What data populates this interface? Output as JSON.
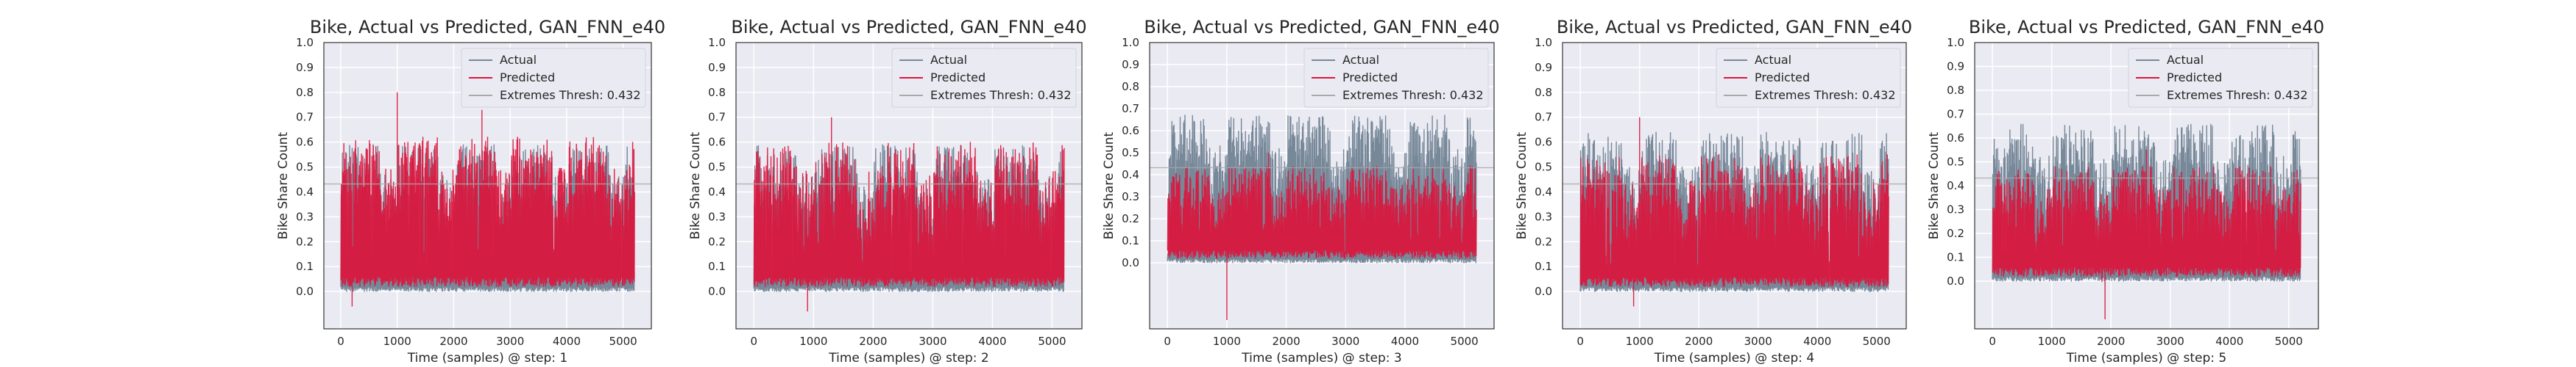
{
  "chart_data": [
    {
      "type": "line",
      "title": "Bike, Actual vs Predicted, GAN_FNN_e40",
      "xlabel": "Time (samples) @ step: 1",
      "ylabel": "Bike Share Count",
      "xlim": [
        -300,
        5500
      ],
      "ylim": [
        -0.15,
        1.0
      ],
      "xticks": [
        0,
        1000,
        2000,
        3000,
        4000,
        5000
      ],
      "yticks": [
        0.0,
        0.1,
        0.2,
        0.3,
        0.4,
        0.5,
        0.6,
        0.7,
        0.8,
        0.9,
        1.0
      ],
      "grid": true,
      "legend": "top-right",
      "threshold": 0.432,
      "series": [
        {
          "name": "Actual",
          "color": "#778899",
          "lowMin": 0.0,
          "lowMax": 0.02,
          "peakBase": 0.47,
          "peakVar": 0.12
        },
        {
          "name": "Predicted",
          "color": "#dc143c",
          "lowMin": 0.02,
          "lowMax": 0.06,
          "peakBase": 0.5,
          "peakVar": 0.12,
          "spikes": [
            [
              200,
              -0.06
            ],
            [
              1000,
              0.8
            ],
            [
              2500,
              0.73
            ]
          ]
        },
        {
          "name": "Extremes Thresh: 0.432",
          "color": "#a9a9a9"
        }
      ]
    },
    {
      "type": "line",
      "title": "Bike, Actual vs Predicted, GAN_FNN_e40",
      "xlabel": "Time (samples) @ step: 2",
      "ylabel": "Bike Share Count",
      "xlim": [
        -300,
        5500
      ],
      "ylim": [
        -0.15,
        1.0
      ],
      "xticks": [
        0,
        1000,
        2000,
        3000,
        4000,
        5000
      ],
      "yticks": [
        0.0,
        0.1,
        0.2,
        0.3,
        0.4,
        0.5,
        0.6,
        0.7,
        0.8,
        0.9,
        1.0
      ],
      "grid": true,
      "legend": "top-right",
      "threshold": 0.432,
      "series": [
        {
          "name": "Actual",
          "color": "#778899",
          "lowMin": 0.0,
          "lowMax": 0.02,
          "peakBase": 0.47,
          "peakVar": 0.12
        },
        {
          "name": "Predicted",
          "color": "#dc143c",
          "lowMin": 0.02,
          "lowMax": 0.06,
          "peakBase": 0.46,
          "peakVar": 0.14,
          "spikes": [
            [
              900,
              -0.08
            ],
            [
              1300,
              0.7
            ]
          ]
        },
        {
          "name": "Extremes Thresh: 0.432",
          "color": "#a9a9a9"
        }
      ]
    },
    {
      "type": "line",
      "title": "Bike, Actual vs Predicted, GAN_FNN_e40",
      "xlabel": "Time (samples) @ step: 3",
      "ylabel": "Bike Share Count",
      "xlim": [
        -300,
        5500
      ],
      "ylim": [
        -0.3,
        1.0
      ],
      "xticks": [
        0,
        1000,
        2000,
        3000,
        4000,
        5000
      ],
      "yticks": [
        0.0,
        0.1,
        0.2,
        0.3,
        0.4,
        0.5,
        0.6,
        0.7,
        0.8,
        0.9,
        1.0
      ],
      "grid": true,
      "legend": "top-right",
      "threshold": 0.432,
      "series": [
        {
          "name": "Actual",
          "color": "#778899",
          "lowMin": 0.0,
          "lowMax": 0.02,
          "peakBase": 0.55,
          "peakVar": 0.12
        },
        {
          "name": "Predicted",
          "color": "#dc143c",
          "lowMin": 0.02,
          "lowMax": 0.06,
          "peakBase": 0.34,
          "peakVar": 0.1,
          "spikes": [
            [
              1000,
              -0.26
            ],
            [
              1700,
              0.5
            ]
          ]
        },
        {
          "name": "Extremes Thresh: 0.432",
          "color": "#a9a9a9"
        }
      ]
    },
    {
      "type": "line",
      "title": "Bike, Actual vs Predicted, GAN_FNN_e40",
      "xlabel": "Time (samples) @ step: 4",
      "ylabel": "Bike Share Count",
      "xlim": [
        -300,
        5500
      ],
      "ylim": [
        -0.15,
        1.0
      ],
      "xticks": [
        0,
        1000,
        2000,
        3000,
        4000,
        5000
      ],
      "yticks": [
        0.0,
        0.1,
        0.2,
        0.3,
        0.4,
        0.5,
        0.6,
        0.7,
        0.8,
        0.9,
        1.0
      ],
      "grid": true,
      "legend": "top-right",
      "threshold": 0.432,
      "series": [
        {
          "name": "Actual",
          "color": "#778899",
          "lowMin": 0.0,
          "lowMax": 0.02,
          "peakBase": 0.52,
          "peakVar": 0.12
        },
        {
          "name": "Predicted",
          "color": "#dc143c",
          "lowMin": 0.02,
          "lowMax": 0.06,
          "peakBase": 0.43,
          "peakVar": 0.12,
          "spikes": [
            [
              900,
              -0.06
            ],
            [
              1000,
              0.7
            ]
          ]
        },
        {
          "name": "Extremes Thresh: 0.432",
          "color": "#a9a9a9"
        }
      ]
    },
    {
      "type": "line",
      "title": "Bike, Actual vs Predicted, GAN_FNN_e40",
      "xlabel": "Time (samples) @ step: 5",
      "ylabel": "Bike Share Count",
      "xlim": [
        -300,
        5500
      ],
      "ylim": [
        -0.2,
        1.0
      ],
      "xticks": [
        0,
        1000,
        2000,
        3000,
        4000,
        5000
      ],
      "yticks": [
        0.0,
        0.1,
        0.2,
        0.3,
        0.4,
        0.5,
        0.6,
        0.7,
        0.8,
        0.9,
        1.0
      ],
      "grid": true,
      "legend": "top-right",
      "threshold": 0.432,
      "series": [
        {
          "name": "Actual",
          "color": "#778899",
          "lowMin": 0.0,
          "lowMax": 0.02,
          "peakBase": 0.54,
          "peakVar": 0.12
        },
        {
          "name": "Predicted",
          "color": "#dc143c",
          "lowMin": 0.02,
          "lowMax": 0.06,
          "peakBase": 0.38,
          "peakVar": 0.1,
          "spikes": [
            [
              1900,
              -0.16
            ],
            [
              2600,
              0.55
            ]
          ]
        },
        {
          "name": "Extremes Thresh: 0.432",
          "color": "#a9a9a9"
        }
      ]
    }
  ]
}
